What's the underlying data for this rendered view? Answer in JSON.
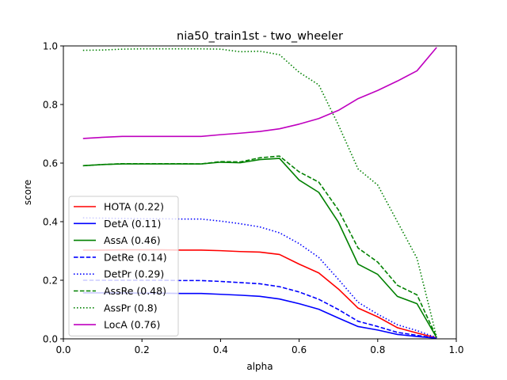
{
  "chart_data": {
    "type": "line",
    "title": "nia50_train1st - two_wheeler",
    "xlabel": "alpha",
    "ylabel": "score",
    "xlim": [
      0.0,
      1.0
    ],
    "ylim": [
      0.0,
      1.0
    ],
    "xticks": [
      0.0,
      0.2,
      0.4,
      0.6,
      0.8,
      1.0
    ],
    "yticks": [
      0.0,
      0.2,
      0.4,
      0.6,
      0.8,
      1.0
    ],
    "xtick_labels": [
      "0.0",
      "0.2",
      "0.4",
      "0.6",
      "0.8",
      "1.0"
    ],
    "ytick_labels": [
      "0.0",
      "0.2",
      "0.4",
      "0.6",
      "0.8",
      "1.0"
    ],
    "grid": false,
    "legend_position": "lower-left",
    "x": [
      0.05,
      0.1,
      0.15,
      0.2,
      0.25,
      0.3,
      0.35,
      0.4,
      0.45,
      0.5,
      0.55,
      0.6,
      0.65,
      0.7,
      0.75,
      0.8,
      0.85,
      0.9,
      0.95
    ],
    "series": [
      {
        "name": "HOTA (0.22)",
        "color": "#ff0000",
        "dash": "solid",
        "values": [
          0.303,
          0.303,
          0.304,
          0.304,
          0.304,
          0.303,
          0.303,
          0.301,
          0.298,
          0.296,
          0.288,
          0.255,
          0.225,
          0.17,
          0.105,
          0.075,
          0.038,
          0.02,
          0.003
        ]
      },
      {
        "name": "DetA (0.11)",
        "color": "#0000ff",
        "dash": "solid",
        "values": [
          0.157,
          0.157,
          0.157,
          0.156,
          0.156,
          0.155,
          0.155,
          0.152,
          0.149,
          0.145,
          0.136,
          0.12,
          0.101,
          0.071,
          0.042,
          0.03,
          0.015,
          0.008,
          0.002
        ]
      },
      {
        "name": "AssA (0.46)",
        "color": "#008000",
        "dash": "solid",
        "values": [
          0.591,
          0.595,
          0.597,
          0.597,
          0.597,
          0.597,
          0.597,
          0.603,
          0.601,
          0.612,
          0.616,
          0.542,
          0.5,
          0.398,
          0.255,
          0.22,
          0.145,
          0.12,
          0.004
        ]
      },
      {
        "name": "DetRe (0.14)",
        "color": "#0000ff",
        "dash": "dashed",
        "values": [
          0.2,
          0.2,
          0.2,
          0.2,
          0.2,
          0.199,
          0.199,
          0.196,
          0.192,
          0.188,
          0.178,
          0.16,
          0.135,
          0.1,
          0.06,
          0.042,
          0.022,
          0.012,
          0.002
        ]
      },
      {
        "name": "DetPr (0.29)",
        "color": "#0000ff",
        "dash": "dotted",
        "values": [
          0.413,
          0.412,
          0.411,
          0.41,
          0.41,
          0.409,
          0.409,
          0.402,
          0.393,
          0.382,
          0.362,
          0.325,
          0.278,
          0.203,
          0.125,
          0.084,
          0.048,
          0.028,
          0.004
        ]
      },
      {
        "name": "AssRe (0.48)",
        "color": "#008000",
        "dash": "dashed",
        "values": [
          0.591,
          0.595,
          0.598,
          0.598,
          0.598,
          0.598,
          0.597,
          0.605,
          0.604,
          0.618,
          0.624,
          0.57,
          0.535,
          0.44,
          0.31,
          0.262,
          0.183,
          0.15,
          0.005
        ]
      },
      {
        "name": "AssPr (0.8)",
        "color": "#008000",
        "dash": "dotted",
        "values": [
          0.985,
          0.986,
          0.989,
          0.99,
          0.99,
          0.99,
          0.99,
          0.989,
          0.98,
          0.982,
          0.97,
          0.91,
          0.867,
          0.73,
          0.58,
          0.525,
          0.4,
          0.275,
          0.006
        ]
      },
      {
        "name": "LocA (0.76)",
        "color": "#bf00bf",
        "dash": "solid",
        "values": [
          0.684,
          0.688,
          0.691,
          0.691,
          0.691,
          0.691,
          0.691,
          0.697,
          0.702,
          0.708,
          0.717,
          0.733,
          0.752,
          0.78,
          0.82,
          0.848,
          0.88,
          0.915,
          0.995
        ]
      }
    ]
  }
}
